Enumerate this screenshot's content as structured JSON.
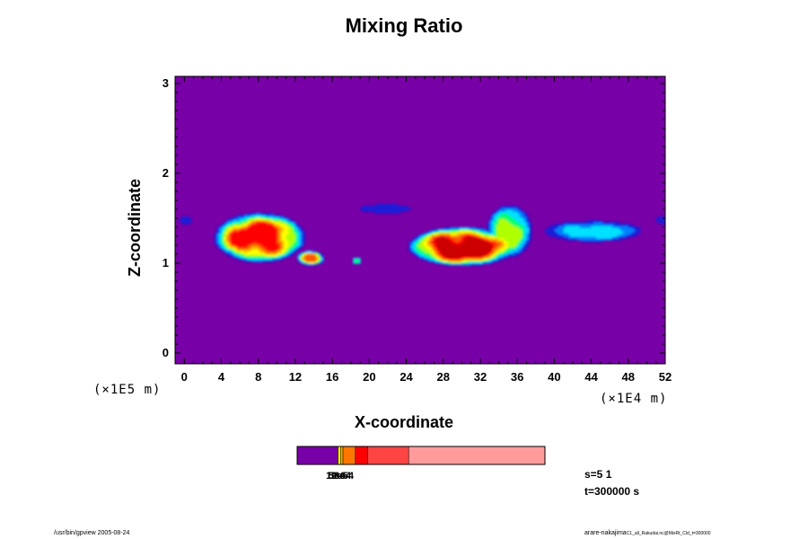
{
  "chart_data": {
    "type": "heatmap",
    "title": "Mixing Ratio",
    "xlabel": "X-coordinate",
    "ylabel": "Z-coordinate",
    "x_scale_label": "(×1E4 m)",
    "y_scale_label": "(×1E5 m)",
    "xlim": [
      -1,
      52
    ],
    "ylim": [
      -0.12,
      3.08
    ],
    "x_ticks": [
      "0",
      "4",
      "8",
      "12",
      "16",
      "20",
      "24",
      "28",
      "32",
      "36",
      "40",
      "44",
      "48",
      "52"
    ],
    "y_ticks": [
      "0",
      "1",
      "2",
      "3"
    ],
    "background_color": "#7700a6",
    "colors": [
      "#7700a6",
      "#1a1ad8",
      "#0080ff",
      "#00e0ff",
      "#00ff70",
      "#b0ff00",
      "#ffff00",
      "#ffaa00",
      "#ff5500",
      "#ff0000",
      "#cc0000"
    ],
    "colorbar_labels": [
      "1e-6",
      "5e-5",
      "2e-4",
      "3e-4"
    ],
    "colorbar_segment_colors": [
      "#7700a6",
      "#ffff00",
      "#ffaa00",
      "#ff7700",
      "#ff0000",
      "#ff4444",
      "#ff9b9b"
    ],
    "colorbar_segment_fractions": [
      0.165,
      0.01,
      0.01,
      0.05,
      0.05,
      0.165,
      0.55
    ],
    "cloud_regions": [
      {
        "x_center": 8,
        "z_center": 1.28,
        "x_halfwidth": 5,
        "z_halfheight": 0.28,
        "peak_level": 9
      },
      {
        "x_center": 13.5,
        "z_center": 1.05,
        "x_halfwidth": 1.5,
        "z_halfheight": 0.08,
        "peak_level": 8
      },
      {
        "x_center": 30,
        "z_center": 1.18,
        "x_halfwidth": 6,
        "z_halfheight": 0.22,
        "peak_level": 10
      },
      {
        "x_center": 35,
        "z_center": 1.35,
        "x_halfwidth": 2.5,
        "z_halfheight": 0.3,
        "peak_level": 5
      },
      {
        "x_center": 44,
        "z_center": 1.35,
        "x_halfwidth": 5.5,
        "z_halfheight": 0.12,
        "peak_level": 3
      },
      {
        "x_center": 21.5,
        "z_center": 1.6,
        "x_halfwidth": 3.5,
        "z_halfheight": 0.06,
        "peak_level": 1
      },
      {
        "x_center": 18.5,
        "z_center": 1.02,
        "x_halfwidth": 0.5,
        "z_halfheight": 0.04,
        "peak_level": 4
      },
      {
        "x_center": 0,
        "z_center": 1.47,
        "x_halfwidth": 0.8,
        "z_halfheight": 0.04,
        "peak_level": 1
      },
      {
        "x_center": 51.5,
        "z_center": 1.47,
        "x_halfwidth": 0.8,
        "z_halfheight": 0.04,
        "peak_level": 1
      }
    ]
  },
  "info": {
    "s_label": "s=5 1",
    "t_label": "t=300000 s"
  },
  "footer": {
    "left": "/usr/bin/gpview 2005-08-24",
    "right": "arare-nakajima",
    "right_small": "C1_all_Rakudai.nc@MixRt_Cld_t=300000"
  }
}
